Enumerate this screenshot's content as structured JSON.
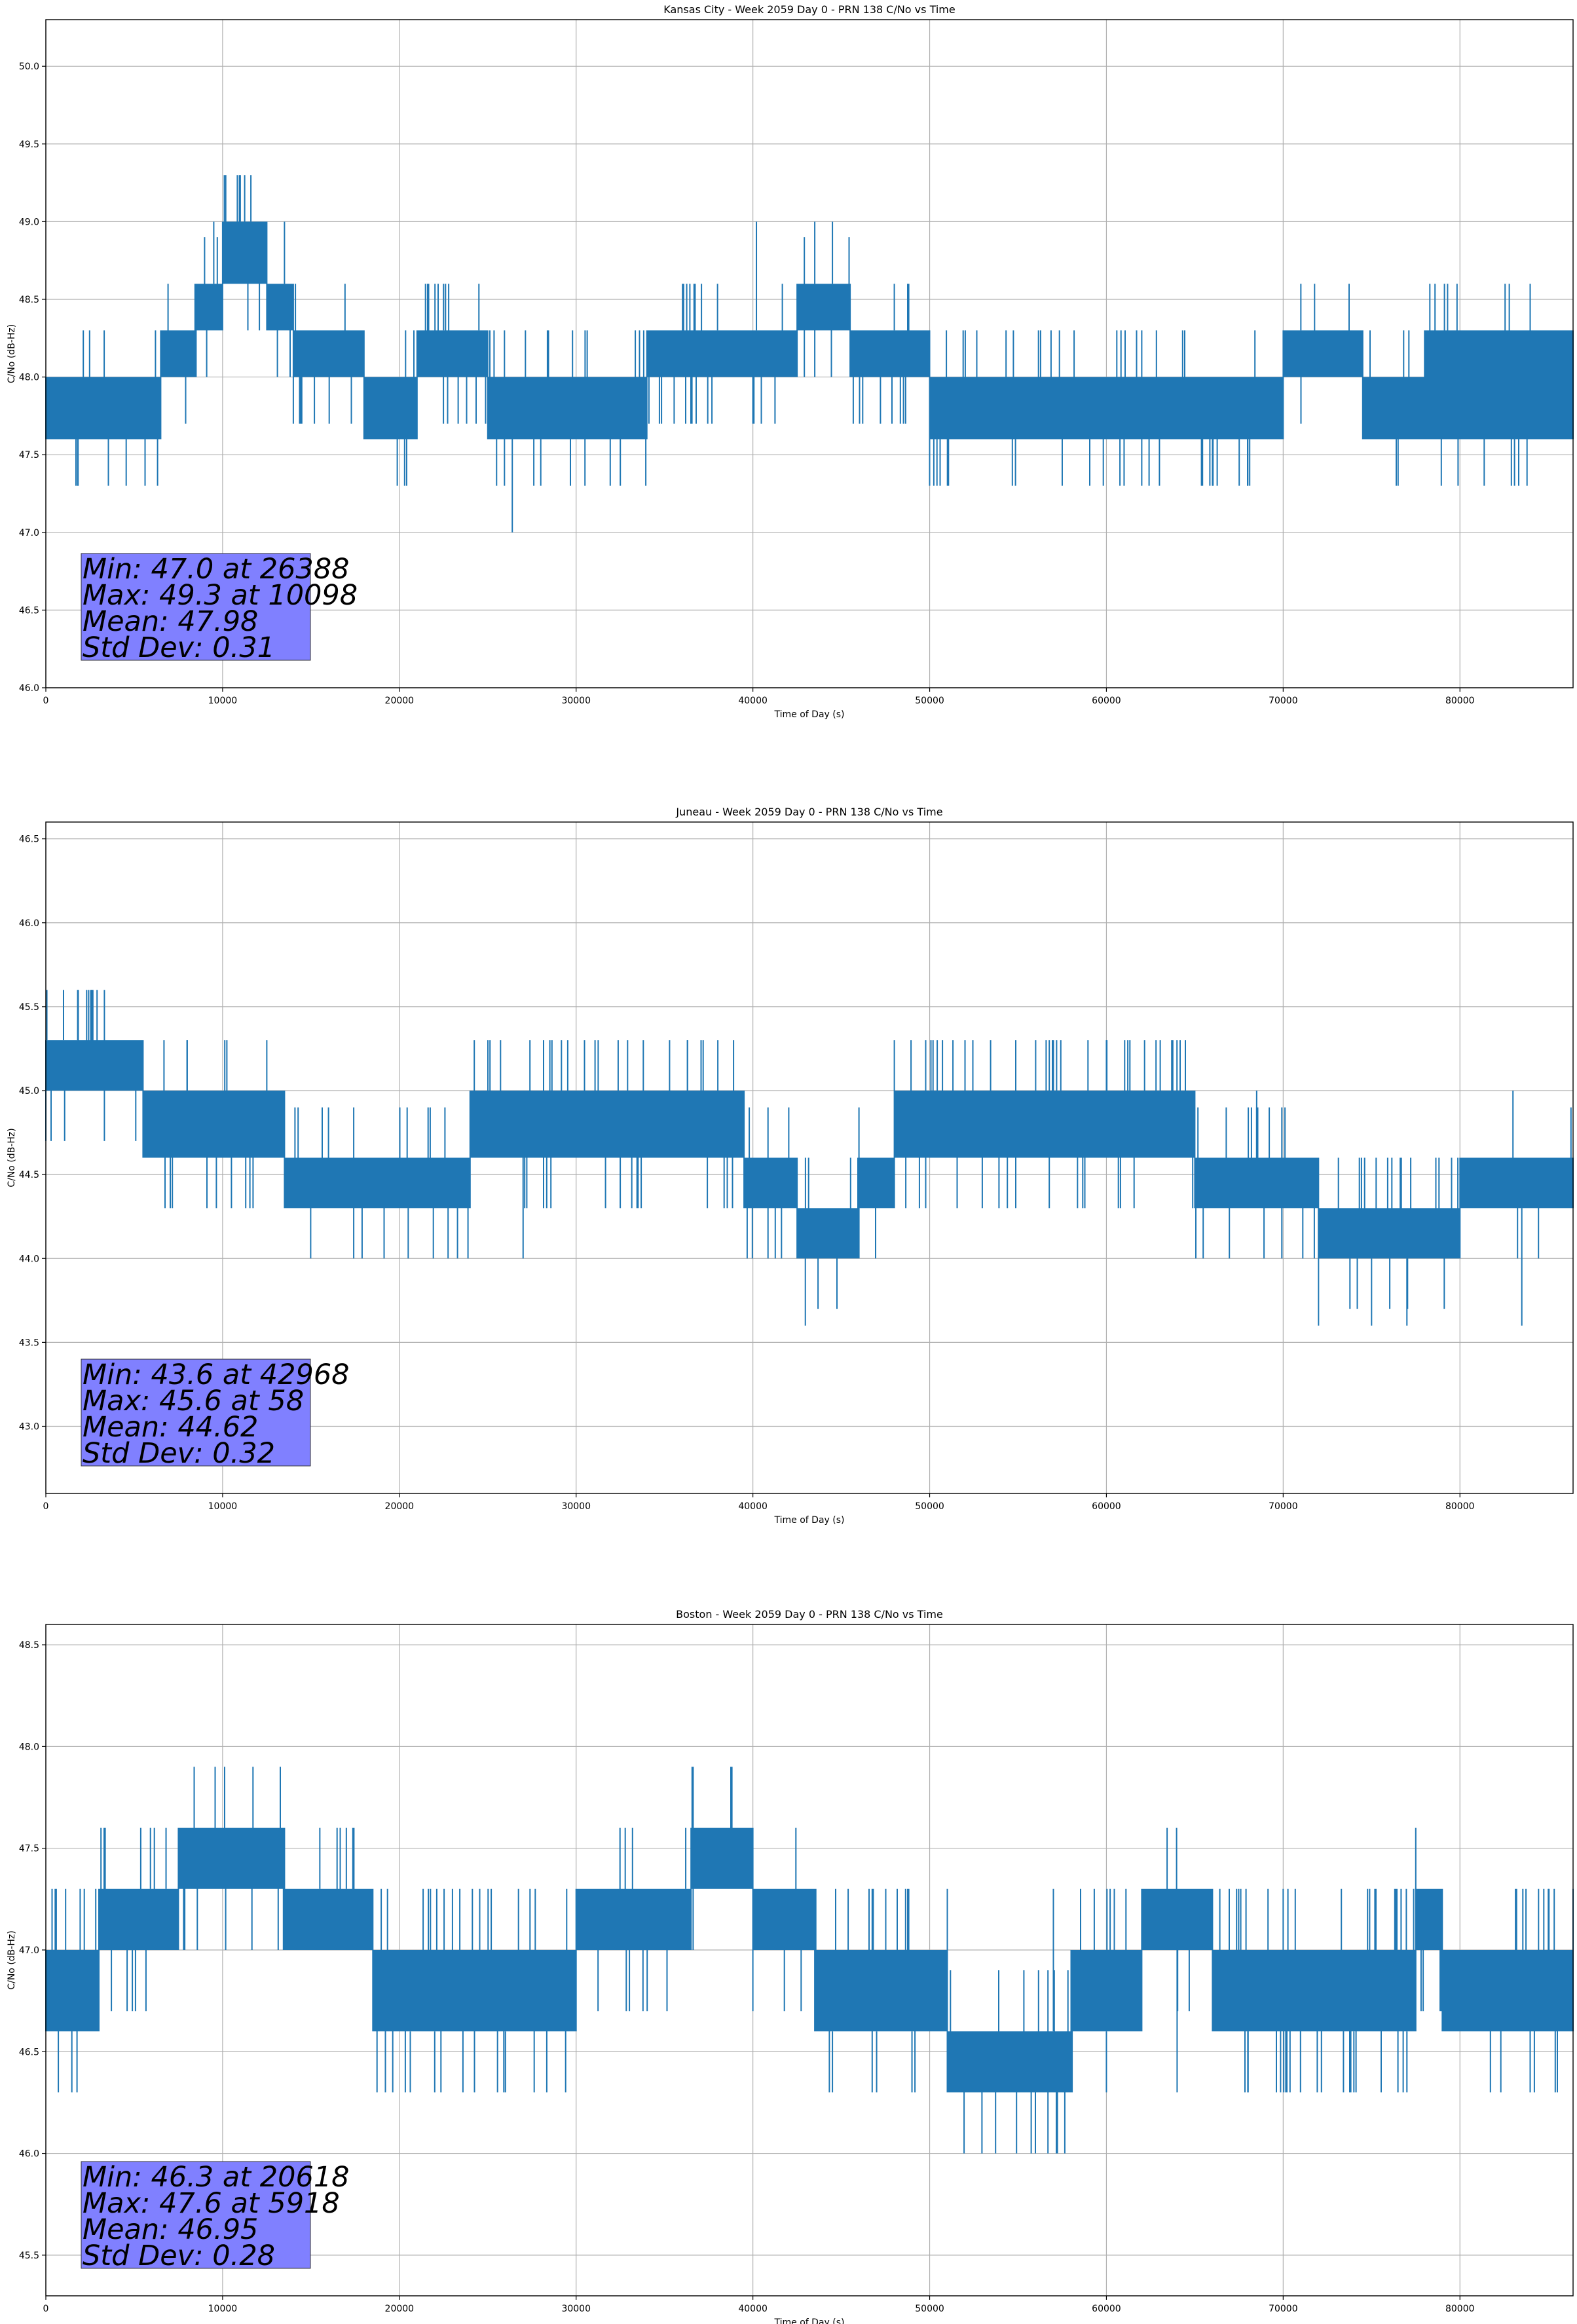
{
  "chart_data": [
    {
      "type": "line",
      "title": "Kansas City - Week 2059 Day 0 - PRN 138 C/No vs Time",
      "xlabel": "Time of Day (s)",
      "ylabel": "C/No (dB-Hz)",
      "xlim": [
        0,
        86400
      ],
      "ylim": [
        46.0,
        50.3
      ],
      "xticks": [
        "0",
        "10000",
        "20000",
        "30000",
        "40000",
        "50000",
        "60000",
        "70000",
        "80000"
      ],
      "yticks": [
        "46.0",
        "46.5",
        "47.0",
        "47.5",
        "48.0",
        "48.5",
        "49.0",
        "49.5",
        "50.0"
      ],
      "grid": true,
      "series": [
        {
          "name": "C/No",
          "segments": [
            {
              "x0": 0,
              "x1": 2000,
              "lo": 47.6,
              "hi": 48.0
            },
            {
              "x0": 2000,
              "x1": 6500,
              "lo": 47.6,
              "hi": 48.0
            },
            {
              "x0": 6500,
              "x1": 8500,
              "lo": 48.0,
              "hi": 48.3
            },
            {
              "x0": 8500,
              "x1": 10000,
              "lo": 48.3,
              "hi": 48.6
            },
            {
              "x0": 10000,
              "x1": 12500,
              "lo": 48.6,
              "hi": 49.0
            },
            {
              "x0": 12500,
              "x1": 14000,
              "lo": 48.3,
              "hi": 48.6
            },
            {
              "x0": 14000,
              "x1": 18000,
              "lo": 48.0,
              "hi": 48.3
            },
            {
              "x0": 18000,
              "x1": 21000,
              "lo": 47.6,
              "hi": 48.0
            },
            {
              "x0": 21000,
              "x1": 25000,
              "lo": 48.0,
              "hi": 48.3
            },
            {
              "x0": 25000,
              "x1": 34000,
              "lo": 47.6,
              "hi": 48.0
            },
            {
              "x0": 34000,
              "x1": 40000,
              "lo": 48.0,
              "hi": 48.3
            },
            {
              "x0": 40000,
              "x1": 42500,
              "lo": 48.0,
              "hi": 48.3
            },
            {
              "x0": 42500,
              "x1": 45500,
              "lo": 48.3,
              "hi": 48.6
            },
            {
              "x0": 45500,
              "x1": 50000,
              "lo": 48.0,
              "hi": 48.3
            },
            {
              "x0": 50000,
              "x1": 59000,
              "lo": 47.6,
              "hi": 48.0
            },
            {
              "x0": 59000,
              "x1": 62000,
              "lo": 47.6,
              "hi": 48.0
            },
            {
              "x0": 62000,
              "x1": 70000,
              "lo": 47.6,
              "hi": 48.0
            },
            {
              "x0": 70000,
              "x1": 74500,
              "lo": 48.0,
              "hi": 48.3
            },
            {
              "x0": 74500,
              "x1": 78000,
              "lo": 47.6,
              "hi": 48.0
            },
            {
              "x0": 78000,
              "x1": 86400,
              "lo": 47.6,
              "hi": 48.3
            }
          ],
          "spikes": [
            {
              "x": 1800,
              "v": 47.3
            },
            {
              "x": 10098,
              "v": 49.3
            },
            {
              "x": 11000,
              "v": 49.3
            },
            {
              "x": 11600,
              "v": 49.3
            },
            {
              "x": 9500,
              "v": 49.0
            },
            {
              "x": 13500,
              "v": 49.0
            },
            {
              "x": 22500,
              "v": 48.6
            },
            {
              "x": 24500,
              "v": 48.6
            },
            {
              "x": 26388,
              "v": 47.0
            },
            {
              "x": 25500,
              "v": 47.3
            },
            {
              "x": 28000,
              "v": 47.3
            },
            {
              "x": 30500,
              "v": 47.3
            },
            {
              "x": 32500,
              "v": 47.3
            },
            {
              "x": 38000,
              "v": 48.6
            },
            {
              "x": 40200,
              "v": 49.0
            },
            {
              "x": 43500,
              "v": 49.0
            },
            {
              "x": 44500,
              "v": 49.0
            },
            {
              "x": 48000,
              "v": 48.6
            },
            {
              "x": 57500,
              "v": 47.3
            },
            {
              "x": 61000,
              "v": 47.3
            },
            {
              "x": 63000,
              "v": 47.3
            },
            {
              "x": 66000,
              "v": 47.3
            },
            {
              "x": 68000,
              "v": 47.3
            },
            {
              "x": 71000,
              "v": 48.6
            },
            {
              "x": 76500,
              "v": 47.3
            }
          ]
        }
      ],
      "annotation": [
        "Min: 47.0 at 26388",
        "Max: 49.3 at 10098",
        "Mean: 47.98",
        "Std Dev: 0.31"
      ]
    },
    {
      "type": "line",
      "title": "Juneau - Week 2059 Day 0 - PRN 138 C/No vs Time",
      "xlabel": "Time of Day (s)",
      "ylabel": "C/No (dB-Hz)",
      "xlim": [
        0,
        86400
      ],
      "ylim": [
        42.6,
        46.6
      ],
      "xticks": [
        "0",
        "10000",
        "20000",
        "30000",
        "40000",
        "50000",
        "60000",
        "70000",
        "80000"
      ],
      "yticks": [
        "43.0",
        "43.5",
        "44.0",
        "44.5",
        "45.0",
        "45.5",
        "46.0",
        "46.5"
      ],
      "grid": true,
      "series": [
        {
          "name": "C/No",
          "segments": [
            {
              "x0": 0,
              "x1": 5500,
              "lo": 45.0,
              "hi": 45.3
            },
            {
              "x0": 5500,
              "x1": 13500,
              "lo": 44.6,
              "hi": 45.0
            },
            {
              "x0": 13500,
              "x1": 24000,
              "lo": 44.3,
              "hi": 44.6
            },
            {
              "x0": 24000,
              "x1": 36000,
              "lo": 44.6,
              "hi": 45.0
            },
            {
              "x0": 36000,
              "x1": 39500,
              "lo": 44.6,
              "hi": 45.0
            },
            {
              "x0": 39500,
              "x1": 42500,
              "lo": 44.3,
              "hi": 44.6
            },
            {
              "x0": 42500,
              "x1": 46000,
              "lo": 44.0,
              "hi": 44.3
            },
            {
              "x0": 46000,
              "x1": 48000,
              "lo": 44.3,
              "hi": 44.6
            },
            {
              "x0": 48000,
              "x1": 65000,
              "lo": 44.6,
              "hi": 45.0
            },
            {
              "x0": 65000,
              "x1": 72000,
              "lo": 44.3,
              "hi": 44.6
            },
            {
              "x0": 72000,
              "x1": 80000,
              "lo": 44.0,
              "hi": 44.3
            },
            {
              "x0": 80000,
              "x1": 86400,
              "lo": 44.3,
              "hi": 44.6
            }
          ],
          "spikes": [
            {
              "x": 58,
              "v": 45.6
            },
            {
              "x": 1000,
              "v": 45.6
            },
            {
              "x": 1800,
              "v": 45.6
            },
            {
              "x": 2600,
              "v": 45.6
            },
            {
              "x": 8000,
              "v": 45.3
            },
            {
              "x": 12500,
              "v": 45.3
            },
            {
              "x": 10500,
              "v": 44.3
            },
            {
              "x": 20500,
              "v": 44.0
            },
            {
              "x": 27000,
              "v": 44.0
            },
            {
              "x": 36300,
              "v": 45.3
            },
            {
              "x": 42968,
              "v": 43.6
            },
            {
              "x": 52000,
              "v": 45.3
            },
            {
              "x": 57000,
              "v": 45.3
            },
            {
              "x": 60000,
              "v": 45.3
            },
            {
              "x": 72000,
              "v": 43.6
            },
            {
              "x": 75000,
              "v": 43.6
            },
            {
              "x": 77000,
              "v": 43.6
            },
            {
              "x": 83500,
              "v": 43.6
            },
            {
              "x": 68500,
              "v": 45.0
            },
            {
              "x": 83000,
              "v": 45.0
            }
          ]
        }
      ],
      "annotation": [
        "Min: 43.6 at 42968",
        "Max: 45.6 at 58",
        "Mean: 44.62",
        "Std Dev: 0.32"
      ]
    },
    {
      "type": "line",
      "title": "Boston - Week 2059 Day 0 - PRN 138 C/No vs Time",
      "xlabel": "Time of Day (s)",
      "ylabel": "C/No (dB-Hz)",
      "xlim": [
        0,
        86400
      ],
      "ylim": [
        45.3,
        48.6
      ],
      "xticks": [
        "0",
        "10000",
        "20000",
        "30000",
        "40000",
        "50000",
        "60000",
        "70000",
        "80000"
      ],
      "yticks": [
        "45.5",
        "46.0",
        "46.5",
        "47.0",
        "47.5",
        "48.0",
        "48.5"
      ],
      "grid": true,
      "series": [
        {
          "name": "C/No",
          "segments": [
            {
              "x0": 0,
              "x1": 3000,
              "lo": 46.6,
              "hi": 47.0
            },
            {
              "x0": 3000,
              "x1": 7500,
              "lo": 47.0,
              "hi": 47.3
            },
            {
              "x0": 7500,
              "x1": 13500,
              "lo": 47.3,
              "hi": 47.6
            },
            {
              "x0": 13500,
              "x1": 18500,
              "lo": 47.0,
              "hi": 47.3
            },
            {
              "x0": 18500,
              "x1": 30000,
              "lo": 46.6,
              "hi": 47.0
            },
            {
              "x0": 30000,
              "x1": 36500,
              "lo": 47.0,
              "hi": 47.3
            },
            {
              "x0": 36500,
              "x1": 40000,
              "lo": 47.3,
              "hi": 47.6
            },
            {
              "x0": 40000,
              "x1": 43500,
              "lo": 47.0,
              "hi": 47.3
            },
            {
              "x0": 43500,
              "x1": 51000,
              "lo": 46.6,
              "hi": 47.0
            },
            {
              "x0": 51000,
              "x1": 58000,
              "lo": 46.3,
              "hi": 46.6
            },
            {
              "x0": 58000,
              "x1": 62000,
              "lo": 46.6,
              "hi": 47.0
            },
            {
              "x0": 62000,
              "x1": 66000,
              "lo": 47.0,
              "hi": 47.3
            },
            {
              "x0": 66000,
              "x1": 77500,
              "lo": 46.6,
              "hi": 47.0
            },
            {
              "x0": 77500,
              "x1": 79000,
              "lo": 47.0,
              "hi": 47.3
            },
            {
              "x0": 79000,
              "x1": 86400,
              "lo": 46.6,
              "hi": 47.0
            }
          ],
          "spikes": [
            {
              "x": 5918,
              "v": 47.6
            },
            {
              "x": 6800,
              "v": 47.6
            },
            {
              "x": 15500,
              "v": 47.6
            },
            {
              "x": 17000,
              "v": 47.6
            },
            {
              "x": 20618,
              "v": 46.3
            },
            {
              "x": 22000,
              "v": 46.3
            },
            {
              "x": 26000,
              "v": 46.3
            },
            {
              "x": 36200,
              "v": 47.6
            },
            {
              "x": 44500,
              "v": 46.3
            },
            {
              "x": 47000,
              "v": 46.3
            },
            {
              "x": 49000,
              "v": 46.3
            },
            {
              "x": 60000,
              "v": 46.3
            },
            {
              "x": 64000,
              "v": 46.3
            },
            {
              "x": 68000,
              "v": 46.3
            },
            {
              "x": 74000,
              "v": 46.3
            },
            {
              "x": 77000,
              "v": 46.3
            },
            {
              "x": 57000,
              "v": 47.3
            },
            {
              "x": 70000,
              "v": 47.3
            },
            {
              "x": 85000,
              "v": 47.3
            }
          ]
        }
      ],
      "annotation": [
        "Min: 46.3 at 20618",
        "Max: 47.6 at 5918",
        "Mean: 46.95",
        "Std Dev: 0.28"
      ]
    }
  ]
}
